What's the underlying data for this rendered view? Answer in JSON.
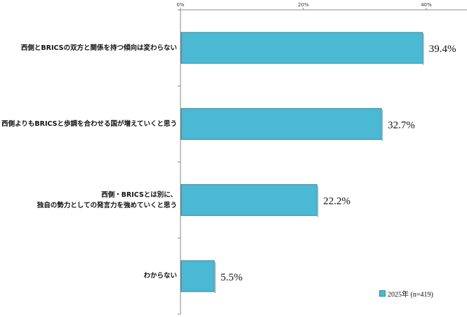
{
  "chart_data": {
    "type": "bar",
    "orientation": "horizontal",
    "categories": [
      "西側とBRICSの双方と関係を持つ傾向は変わらない",
      "西側よりもBRICSと歩調を合わせる国が増えていくと思う",
      "西側・BRICSとは別に、\n独自の勢力としての発言力を強めていくと思う",
      "わからない"
    ],
    "series": [
      {
        "name": "2025年 (n=419)",
        "values": [
          39.4,
          32.7,
          22.2,
          5.5
        ]
      }
    ],
    "value_labels": [
      "39.4%",
      "32.7%",
      "22.2%",
      "5.5%"
    ],
    "x_ticks": [
      "0%",
      "20%",
      "40%"
    ],
    "xlim": [
      0,
      40
    ],
    "grid": false,
    "legend_position": "bottom-right",
    "colors": {
      "bar": "#4bb8d4",
      "bar_border": "#2b8aa3"
    }
  }
}
